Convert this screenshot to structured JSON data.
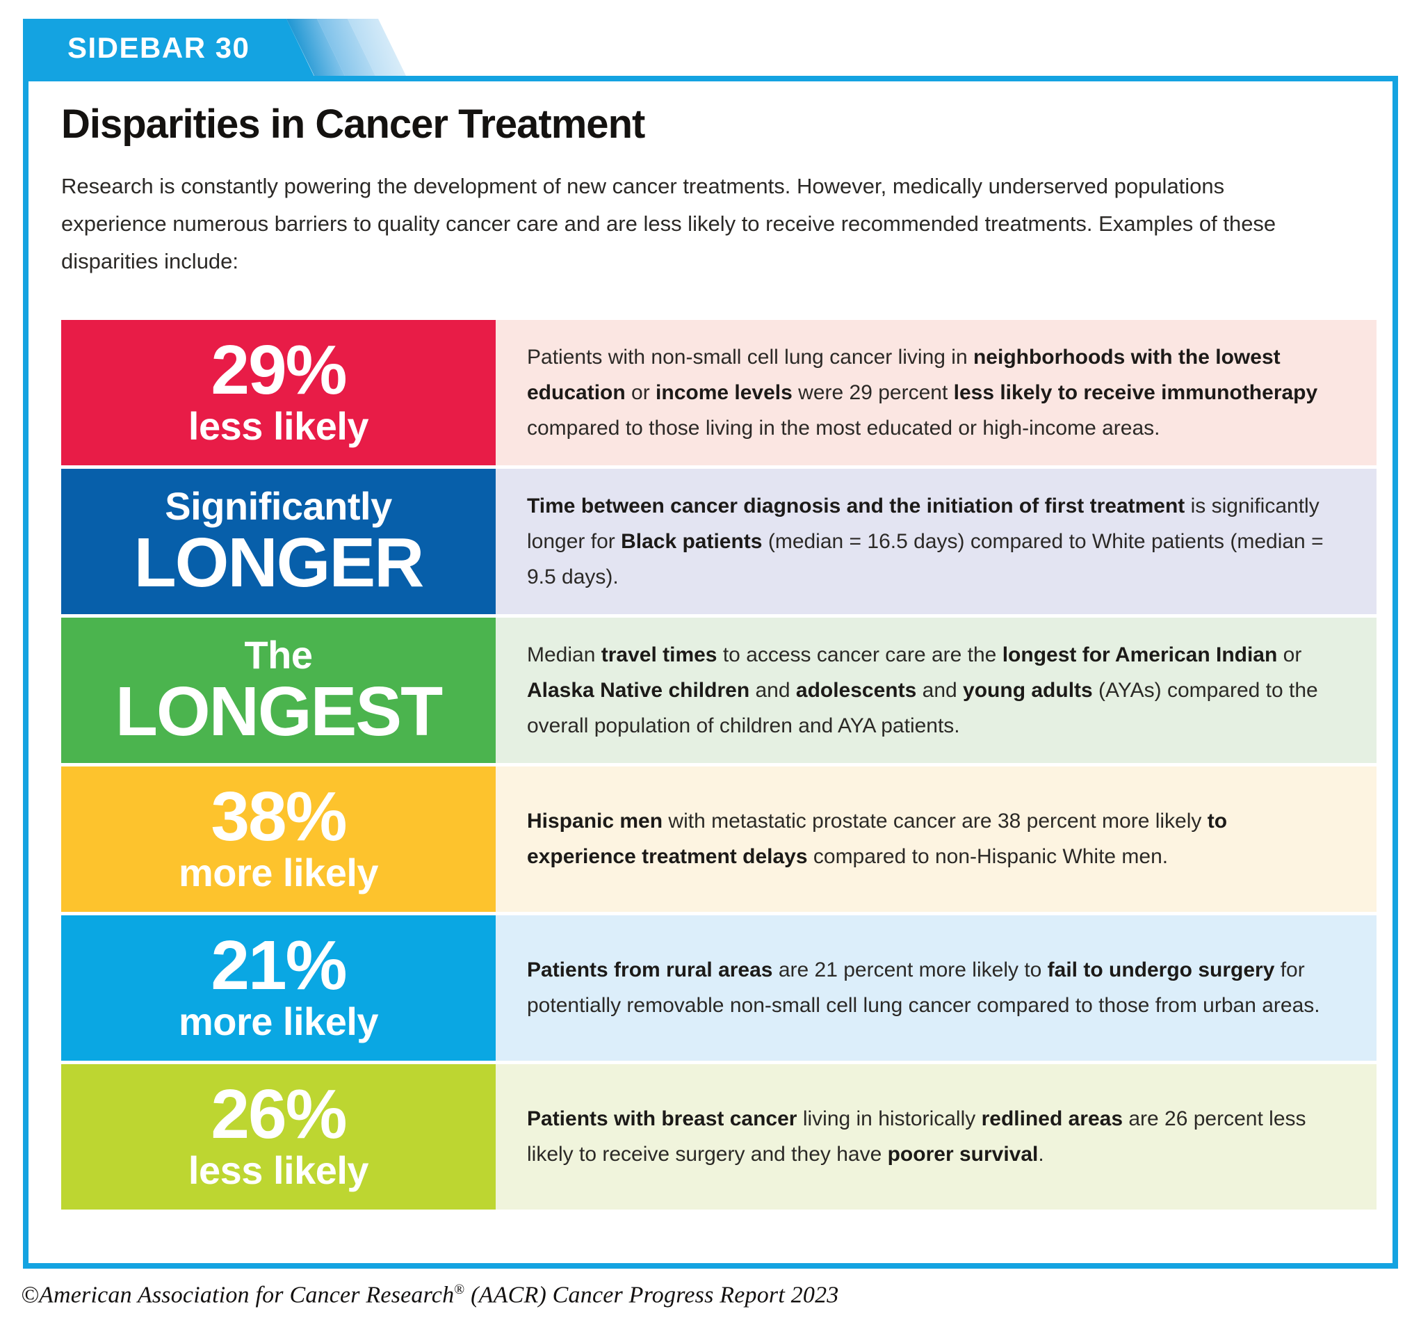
{
  "theme": {
    "brand_blue": "#14A3E1"
  },
  "header": {
    "tab_label": "SIDEBAR 30"
  },
  "title": "Disparities in Cancer Treatment",
  "intro": "Research is constantly powering the development of new cancer treatments. However, medically underserved populations experience numerous barriers to quality cancer care and are less likely to receive recommended treatments. Examples of these disparities include:",
  "rows": [
    {
      "stat": {
        "line1": "29%",
        "line1_style": "xl",
        "line2": "less likely",
        "line2_style": "lg"
      },
      "box_color": "#E81C47",
      "tint_color": "#FBE6E2",
      "segments": [
        {
          "text": "Patients with non-small cell lung cancer living in ",
          "bold": false
        },
        {
          "text": "neighborhoods with the lowest education",
          "bold": true
        },
        {
          "text": " or ",
          "bold": false
        },
        {
          "text": "income levels",
          "bold": true
        },
        {
          "text": " were 29 percent ",
          "bold": false
        },
        {
          "text": "less likely to receive immunotherapy",
          "bold": true
        },
        {
          "text": " compared to those living in the most educated or high-income areas.",
          "bold": false
        }
      ]
    },
    {
      "stat": {
        "line1": "Significantly",
        "line1_style": "lg",
        "line2": "LONGER",
        "line2_style": "xl"
      },
      "box_color": "#075FAA",
      "tint_color": "#E3E4F2",
      "segments": [
        {
          "text": "Time between cancer diagnosis and the initiation of first treatment",
          "bold": true
        },
        {
          "text": " is significantly longer for ",
          "bold": false
        },
        {
          "text": "Black patients",
          "bold": true
        },
        {
          "text": " (median = 16.5 days) compared to White patients (median = 9.5 days).",
          "bold": false
        }
      ]
    },
    {
      "stat": {
        "line1": "The",
        "line1_style": "lg",
        "line2": "LONGEST",
        "line2_style": "xl"
      },
      "box_color": "#4BB44E",
      "tint_color": "#E5F0E2",
      "segments": [
        {
          "text": "Median ",
          "bold": false
        },
        {
          "text": "travel times",
          "bold": true
        },
        {
          "text": " to access cancer care are the ",
          "bold": false
        },
        {
          "text": "longest for American Indian",
          "bold": true
        },
        {
          "text": " or ",
          "bold": false
        },
        {
          "text": "Alaska Native children",
          "bold": true
        },
        {
          "text": " and ",
          "bold": false
        },
        {
          "text": "adolescents",
          "bold": true
        },
        {
          "text": " and ",
          "bold": false
        },
        {
          "text": "young adults",
          "bold": true
        },
        {
          "text": " (AYAs) compared to the overall population of children and AYA patients.",
          "bold": false
        }
      ]
    },
    {
      "stat": {
        "line1": "38%",
        "line1_style": "xl",
        "line2": "more likely",
        "line2_style": "lg"
      },
      "box_color": "#FDC32D",
      "tint_color": "#FDF4E1",
      "segments": [
        {
          "text": "Hispanic men",
          "bold": true
        },
        {
          "text": " with metastatic prostate cancer are 38 percent more likely ",
          "bold": false
        },
        {
          "text": "to experience treatment delays",
          "bold": true
        },
        {
          "text": " compared to non-Hispanic White men.",
          "bold": false
        }
      ]
    },
    {
      "stat": {
        "line1": "21%",
        "line1_style": "xl",
        "line2": "more likely",
        "line2_style": "lg"
      },
      "box_color": "#0AA7E3",
      "tint_color": "#DCEEFA",
      "segments": [
        {
          "text": "Patients from rural areas",
          "bold": true
        },
        {
          "text": " are 21 percent more likely to ",
          "bold": false
        },
        {
          "text": "fail to undergo surgery",
          "bold": true
        },
        {
          "text": " for potentially removable non-small cell lung cancer compared to those from urban areas.",
          "bold": false
        }
      ]
    },
    {
      "stat": {
        "line1": "26%",
        "line1_style": "xl",
        "line2": "less likely",
        "line2_style": "lg"
      },
      "box_color": "#BDD631",
      "tint_color": "#F0F4DC",
      "segments": [
        {
          "text": "Patients with breast cancer",
          "bold": true
        },
        {
          "text": " living in historically ",
          "bold": false
        },
        {
          "text": "redlined areas",
          "bold": true
        },
        {
          "text": " are 26 percent less likely to receive surgery and they have ",
          "bold": false
        },
        {
          "text": "poorer survival",
          "bold": true
        },
        {
          "text": ".",
          "bold": false
        }
      ]
    }
  ],
  "footer": {
    "pre": "©American Association for Cancer Research",
    "reg": "®",
    "post": " (AACR) Cancer Progress Report 2023"
  }
}
